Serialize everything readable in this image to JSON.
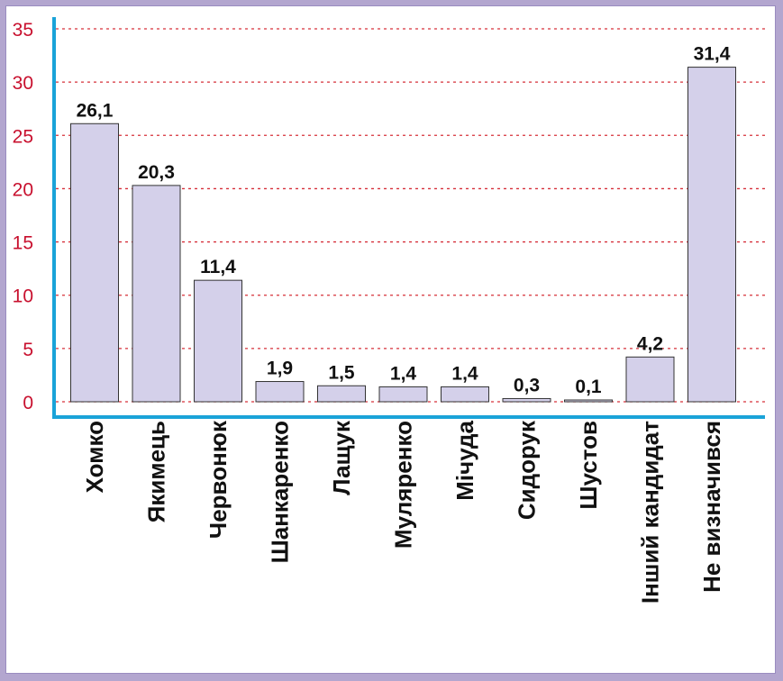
{
  "chart_data": {
    "type": "bar",
    "categories": [
      "Хомко",
      "Якимець",
      "Червонюк",
      "Шанкаренко",
      "Лащук",
      "Муляренко",
      "Мічуда",
      "Сидорук",
      "Шустов",
      "Інший кандидат",
      "Не визначився"
    ],
    "values": [
      26.1,
      20.3,
      11.4,
      1.9,
      1.5,
      1.4,
      1.4,
      0.3,
      0.1,
      4.2,
      31.4
    ],
    "value_labels": [
      "26,1",
      "20,3",
      "11,4",
      "1,9",
      "1,5",
      "1,4",
      "1,4",
      "0,3",
      "0,1",
      "4,2",
      "31,4"
    ],
    "y_ticks": [
      "0",
      "5",
      "10",
      "15",
      "20",
      "25",
      "30",
      "35"
    ],
    "ylim": [
      0,
      35
    ],
    "grid": true,
    "title": "",
    "xlabel": "",
    "ylabel": "",
    "colors": {
      "bar_fill": "#d4d0ea",
      "bar_stroke": "#333333",
      "axis": "#1aa3d8",
      "grid": "#d6303a",
      "tick_label": "#c8102e",
      "frame": "#b3a6cf"
    }
  }
}
